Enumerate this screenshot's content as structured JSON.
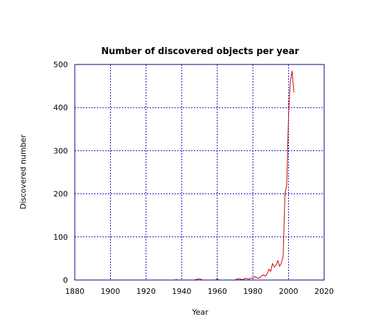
{
  "chart_data": {
    "type": "line",
    "title": "Number of discovered objects per year",
    "xlabel": "Year",
    "ylabel": "Discovered number",
    "xlim": [
      1880,
      2020
    ],
    "ylim": [
      0,
      500
    ],
    "x_ticks": [
      "1880",
      "1900",
      "1920",
      "1940",
      "1960",
      "1980",
      "2000",
      "2020"
    ],
    "y_ticks": [
      "0",
      "100",
      "200",
      "300",
      "400",
      "500"
    ],
    "grid": true,
    "colors": {
      "frame": "#00008b",
      "grid": "#0000cc",
      "series": "#c00000"
    },
    "series": [
      {
        "x": [
          1935,
          1936,
          1937,
          1938,
          1939,
          1940,
          1941,
          1942,
          1943,
          1944,
          1945,
          1946,
          1947,
          1948,
          1949,
          1950,
          1951,
          1952,
          1953,
          1954,
          1955,
          1956,
          1957,
          1958,
          1959,
          1960,
          1961,
          1962,
          1963,
          1964,
          1965,
          1966,
          1967,
          1968,
          1969,
          1970,
          1971,
          1972,
          1973,
          1974,
          1975,
          1976,
          1977,
          1978,
          1979,
          1980,
          1981,
          1982,
          1983,
          1984,
          1985,
          1986,
          1987,
          1988,
          1989,
          1990,
          1991,
          1992,
          1993,
          1994,
          1995,
          1996,
          1997,
          1998,
          1999,
          2000,
          2001,
          2002,
          2003
        ],
        "values": [
          0,
          0,
          1,
          0,
          0,
          0,
          0,
          0,
          0,
          0,
          0,
          0,
          0,
          1,
          2,
          3,
          1,
          0,
          0,
          0,
          0,
          0,
          0,
          0,
          0,
          3,
          0,
          0,
          0,
          0,
          0,
          0,
          0,
          0,
          0,
          0,
          2,
          3,
          2,
          1,
          2,
          4,
          3,
          2,
          5,
          4,
          8,
          6,
          4,
          6,
          10,
          12,
          9,
          14,
          25,
          20,
          38,
          30,
          34,
          45,
          32,
          40,
          55,
          200,
          220,
          380,
          460,
          485,
          435
        ]
      }
    ]
  }
}
